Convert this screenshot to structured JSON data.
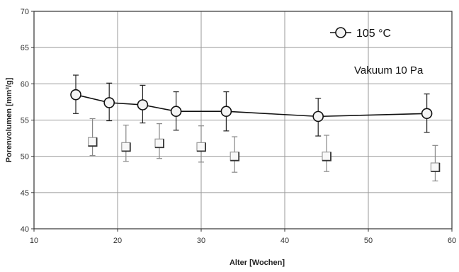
{
  "chart_data": {
    "type": "line",
    "xlabel": "Alter [Wochen]",
    "ylabel": "Porenvolumen [mm³/g]",
    "xlim": [
      10,
      60
    ],
    "ylim": [
      40,
      70
    ],
    "x_ticks": [
      10,
      20,
      30,
      40,
      50,
      60
    ],
    "y_ticks": [
      40,
      45,
      50,
      55,
      60,
      65,
      70
    ],
    "grid": true,
    "legend_position": "top-right",
    "annotation": "Vakuum 10 Pa",
    "series": [
      {
        "name": "105 °C",
        "marker": "circle",
        "color": "#111111",
        "x": [
          15,
          19,
          23,
          27,
          33,
          44,
          57
        ],
        "y": [
          58.5,
          57.4,
          57.1,
          56.2,
          56.2,
          55.5,
          55.9
        ],
        "err_upper": [
          61.2,
          60.1,
          59.8,
          58.9,
          58.9,
          58.0,
          58.6
        ],
        "err_lower": [
          55.9,
          54.9,
          54.6,
          53.6,
          53.5,
          52.8,
          53.3
        ]
      },
      {
        "name": "",
        "marker": "square",
        "color": "#bbbbbb",
        "x": [
          17,
          21,
          25,
          30,
          34,
          45,
          58
        ],
        "y": [
          52.0,
          51.3,
          51.8,
          51.3,
          50.0,
          50.0,
          48.5
        ],
        "err_upper": [
          55.2,
          54.3,
          54.5,
          54.2,
          52.7,
          52.9,
          51.5
        ],
        "err_lower": [
          50.1,
          49.3,
          49.7,
          49.2,
          47.8,
          47.9,
          46.6
        ]
      }
    ]
  }
}
